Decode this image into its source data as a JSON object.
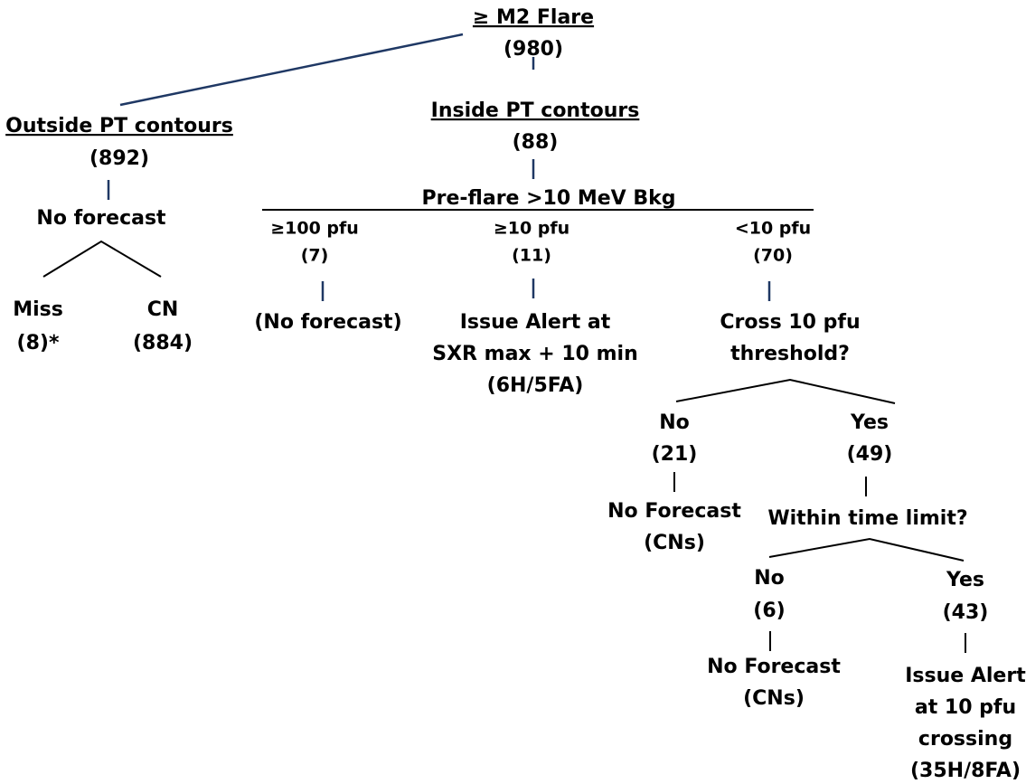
{
  "nodes": [
    {
      "lines": [
        "≥ M2 Flare",
        "(980)"
      ]
    },
    {
      "lines": [
        "Outside PT contours",
        "(892)"
      ]
    },
    {
      "lines": [
        "No forecast"
      ]
    },
    {
      "lines": [
        "Miss",
        "(8)*"
      ]
    },
    {
      "lines": [
        "CN",
        "(884)"
      ]
    },
    {
      "lines": [
        "Inside PT contours",
        "(88)"
      ]
    },
    {
      "lines": [
        "Pre-flare >10 MeV Bkg"
      ]
    },
    {
      "lines": [
        "≥100 pfu",
        "(7)"
      ]
    },
    {
      "lines": [
        "≥10 pfu",
        "(11)"
      ]
    },
    {
      "lines": [
        "<10 pfu",
        "(70)"
      ]
    },
    {
      "lines": [
        "(No forecast)"
      ]
    },
    {
      "lines": [
        "Issue Alert at",
        "SXR max + 10 min",
        "(6H/5FA)"
      ]
    },
    {
      "lines": [
        "Cross 10 pfu",
        "threshold?"
      ]
    },
    {
      "lines": [
        "No",
        "(21)"
      ]
    },
    {
      "lines": [
        "Yes",
        "(49)"
      ]
    },
    {
      "lines": [
        "No Forecast",
        "(CNs)"
      ]
    },
    {
      "lines": [
        "Within time limit?"
      ]
    },
    {
      "lines": [
        "No",
        "(6)"
      ]
    },
    {
      "lines": [
        "Yes",
        "(43)"
      ]
    },
    {
      "lines": [
        "No Forecast",
        "(CNs)"
      ]
    },
    {
      "lines": [
        "Issue Alert",
        "at 10 pfu",
        "crossing",
        "(35H/8FA)"
      ]
    }
  ]
}
